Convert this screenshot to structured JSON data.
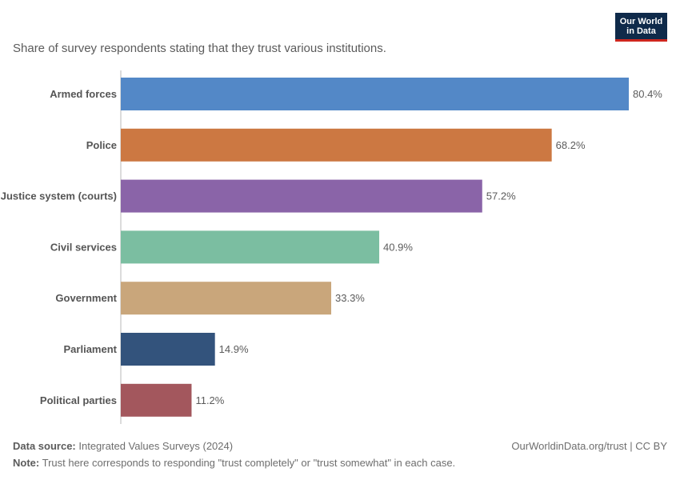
{
  "header": {
    "subtitle": "Share of survey respondents stating that they trust various institutions.",
    "logo_line1": "Our World",
    "logo_line2": "in Data"
  },
  "footer": {
    "source_label": "Data source:",
    "source_text": "Integrated Values Surveys (2024)",
    "credit": "OurWorldinData.org/trust | CC BY",
    "note_label": "Note:",
    "note_text": "Trust here corresponds to responding \"trust completely\" or \"trust somewhat\" in each case."
  },
  "chart_data": {
    "type": "bar",
    "orientation": "horizontal",
    "title": "",
    "xlabel": "",
    "ylabel": "",
    "xlim": [
      0,
      80.4
    ],
    "value_suffix": "%",
    "grid": false,
    "categories": [
      "Armed forces",
      "Police",
      "Justice system (courts)",
      "Civil services",
      "Government",
      "Parliament",
      "Political parties"
    ],
    "values": [
      80.4,
      68.2,
      57.2,
      40.9,
      33.3,
      14.9,
      11.2
    ],
    "colors": [
      "#5388c7",
      "#cc7842",
      "#8a64a8",
      "#7bbea1",
      "#c9a67b",
      "#33537c",
      "#a3575d"
    ]
  }
}
